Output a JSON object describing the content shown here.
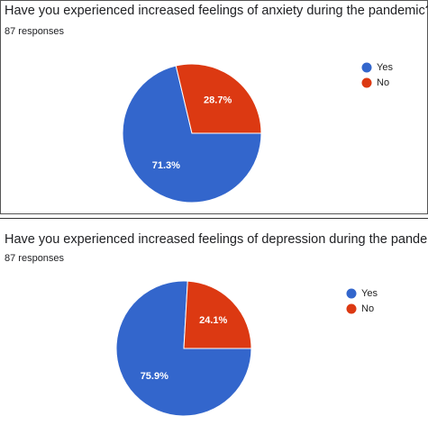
{
  "chart_data": [
    {
      "type": "pie",
      "title": "Have you experienced increased feelings of anxiety during the pandemic?",
      "subtitle": "87 responses",
      "categories": [
        "Yes",
        "No"
      ],
      "values": [
        71.3,
        28.7
      ],
      "value_labels": [
        "71.3%",
        "28.7%"
      ],
      "colors": [
        "#3366cc",
        "#dc3912"
      ],
      "legend": "right"
    },
    {
      "type": "pie",
      "title": "Have you experienced increased feelings of depression during the pandemic?",
      "subtitle": "87 responses",
      "categories": [
        "Yes",
        "No"
      ],
      "values": [
        75.9,
        24.1
      ],
      "value_labels": [
        "75.9%",
        "24.1%"
      ],
      "colors": [
        "#3366cc",
        "#dc3912"
      ],
      "legend": "right"
    }
  ]
}
